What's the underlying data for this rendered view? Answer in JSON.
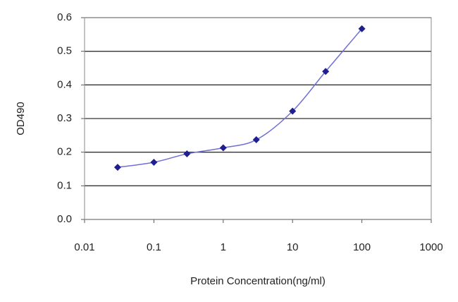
{
  "chart_data": {
    "type": "line",
    "xlabel": "Protein Concentration(ng/ml)",
    "ylabel": "OD490",
    "x": [
      0.03,
      0.1,
      0.3,
      1,
      3,
      10,
      30,
      100
    ],
    "series": [
      {
        "color": "#1f1f8f",
        "line_color": "#6f6fd8",
        "values": [
          0.155,
          0.17,
          0.195,
          0.213,
          0.237,
          0.322,
          0.44,
          0.567
        ]
      }
    ],
    "xscale": "log",
    "xlim": [
      0.01,
      1000
    ],
    "xticks": [
      0.01,
      0.1,
      1,
      10,
      100,
      1000
    ],
    "ylim": [
      0,
      0.6
    ],
    "yticks": [
      {
        "value": 0,
        "label": "0.0"
      },
      0.1,
      0.2,
      0.3,
      0.4,
      0.5,
      0.6
    ],
    "grid": true
  }
}
